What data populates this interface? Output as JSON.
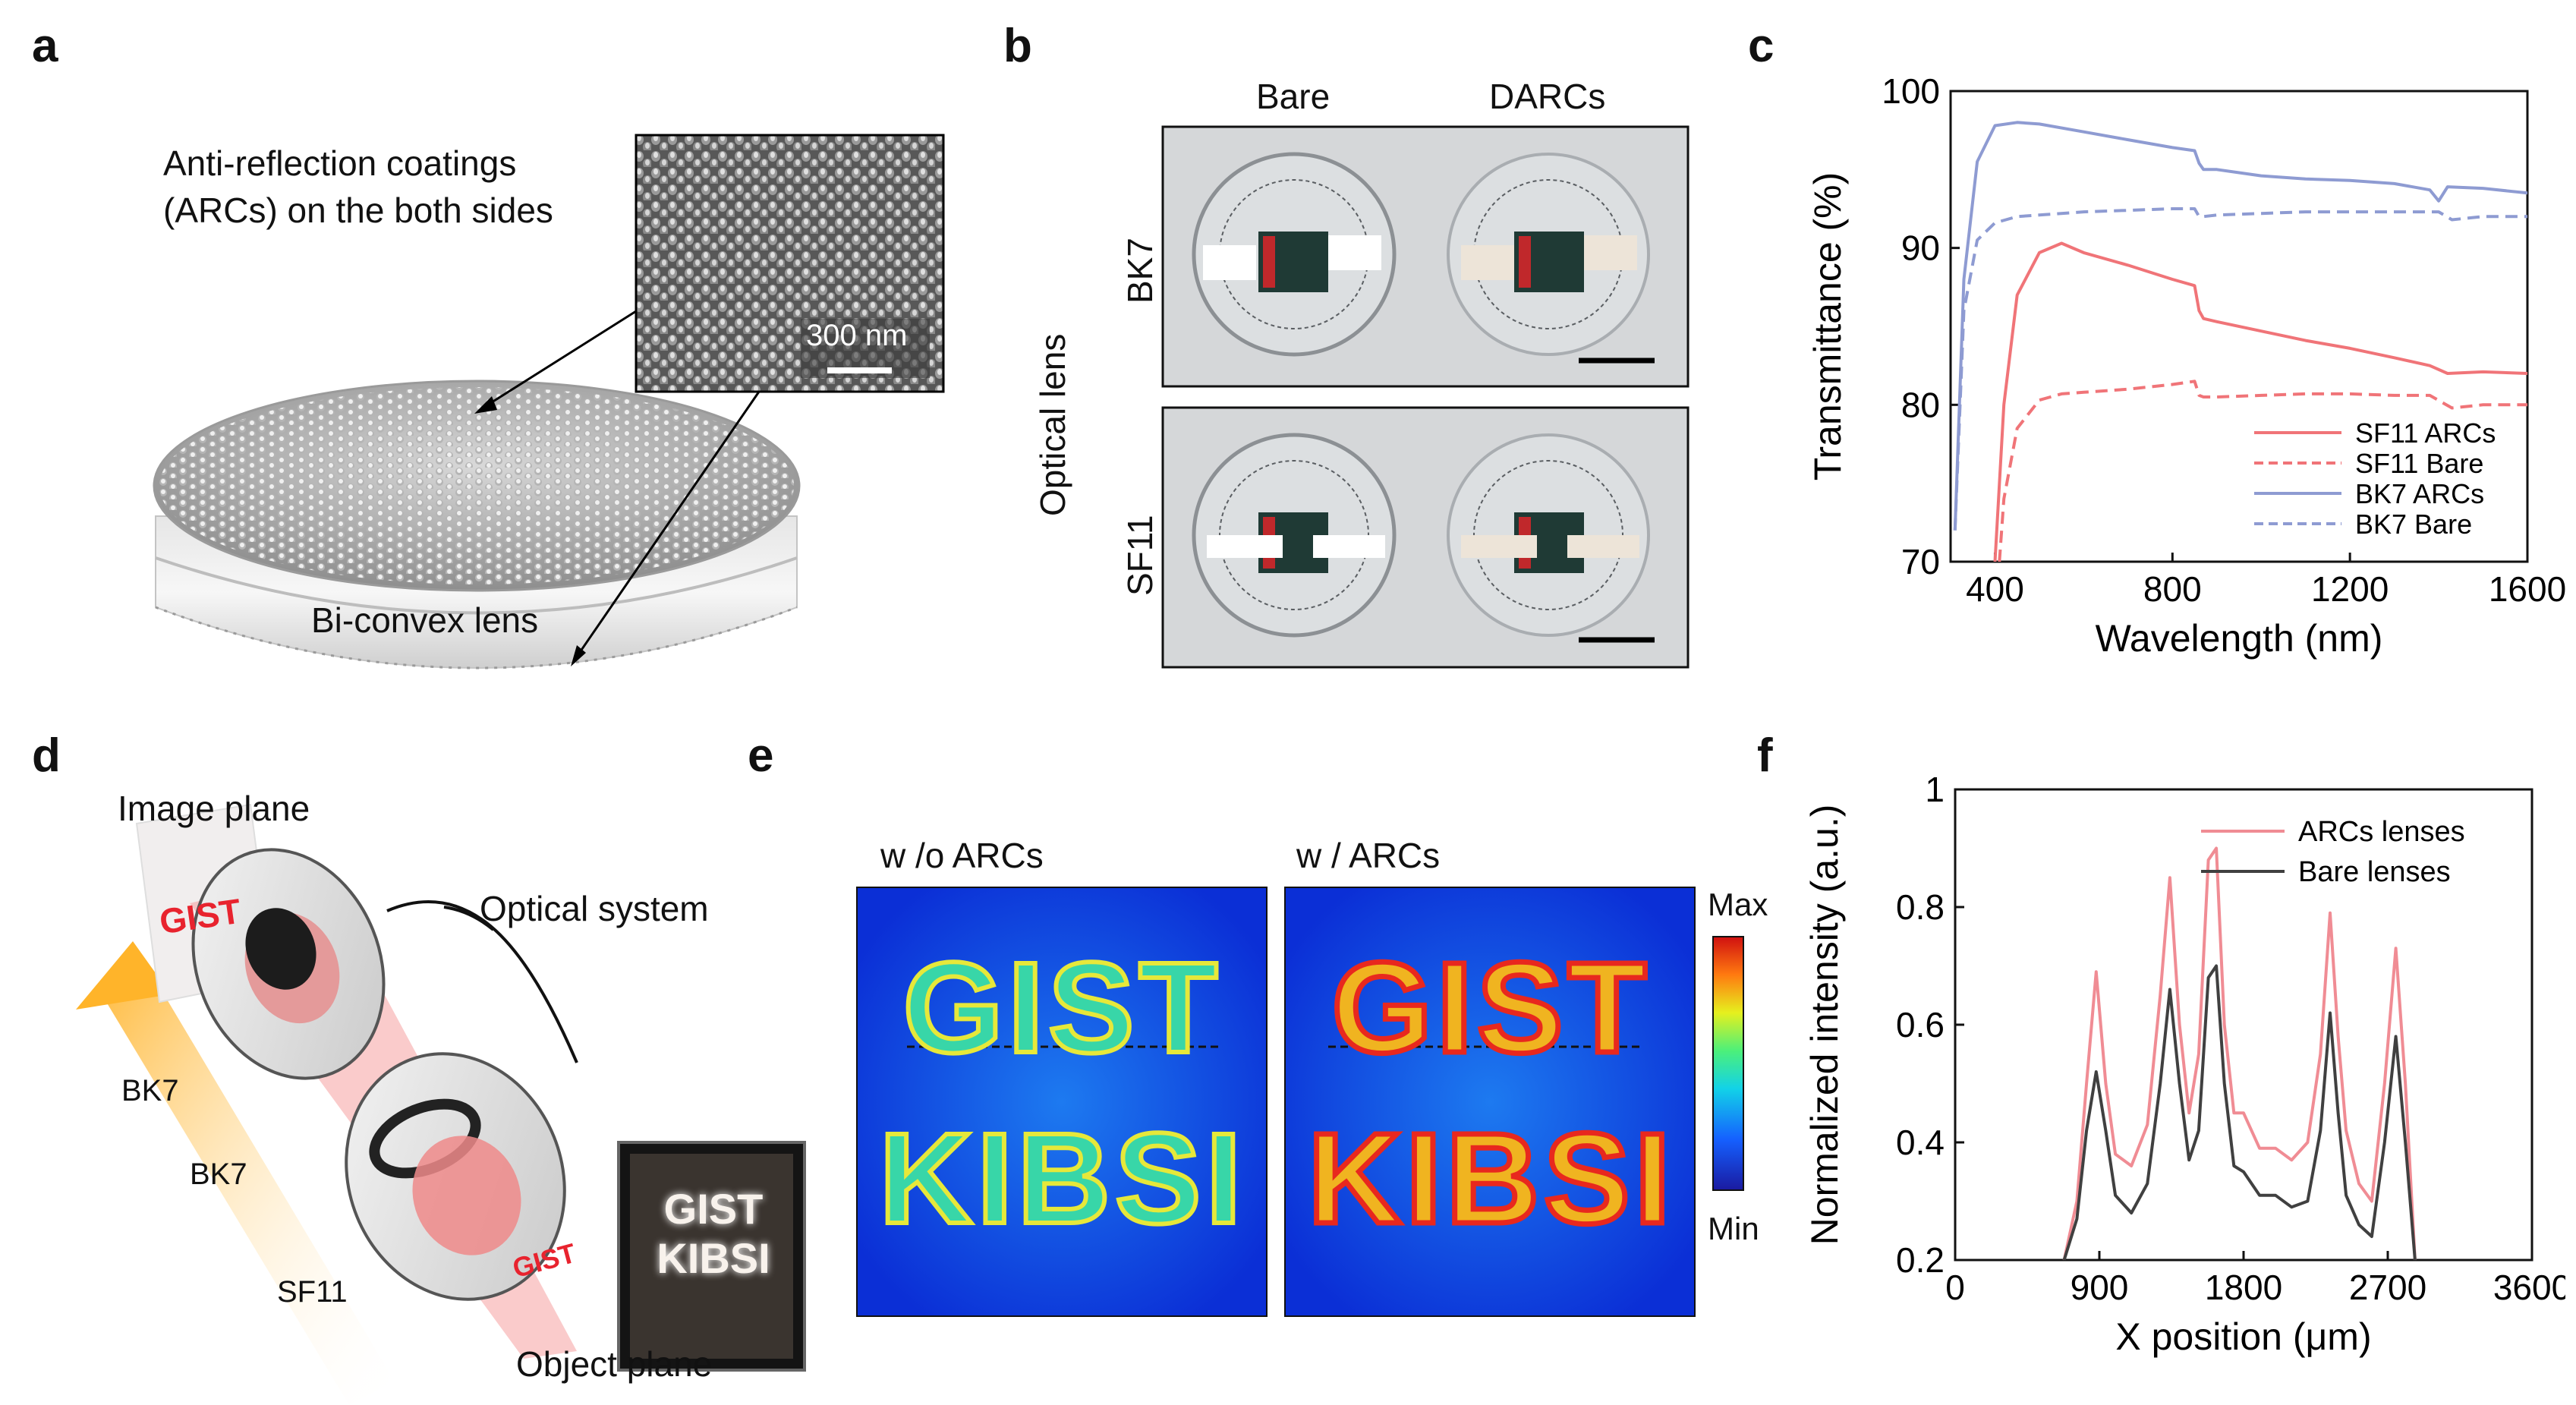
{
  "panels": {
    "a": {
      "letter": "a",
      "coating_label_line1": "Anti-reflection coatings",
      "coating_label_line2": "(ARCs) on the both sides",
      "scale_bar": "300 nm",
      "lens_label": "Bi-convex lens"
    },
    "b": {
      "letter": "b",
      "col_labels": [
        "Bare",
        "DARCs"
      ],
      "row_labels": [
        "BK7",
        "SF11"
      ],
      "side_label": "Optical lens"
    },
    "c": {
      "letter": "c"
    },
    "d": {
      "letter": "d",
      "image_plane": "Image  plane",
      "image_text": "GIST",
      "optical_system": "Optical system",
      "lens_labels": [
        "BK7",
        "BK7",
        "SF11"
      ],
      "object_text": "GIST",
      "object_photo_line1": "GIST",
      "object_photo_line2": "KIBSI",
      "object_plane": "Object plane"
    },
    "e": {
      "letter": "e",
      "left_title": "w /o ARCs",
      "right_title": "w / ARCs",
      "image_line1": "GIST",
      "image_line2": "KIBSI",
      "colorbar_max": "Max",
      "colorbar_min": "Min"
    },
    "f": {
      "letter": "f"
    }
  },
  "colors": {
    "sf11_arcs": "#f07478",
    "sf11_bare": "#f07478",
    "bk7_arcs": "#8e9bd2",
    "bk7_bare": "#8e9bd2",
    "arcs_lenses": "#f08c94",
    "bare_lenses": "#404040",
    "heatmap_bg": "#0b2fd6",
    "red_text": "#e8232e"
  },
  "chart_data": [
    {
      "id": "c",
      "type": "line",
      "xlabel": "Wavelength (nm)",
      "ylabel": "Transmittance (%)",
      "xlim": [
        300,
        1600
      ],
      "ylim": [
        70,
        100
      ],
      "xticks": [
        400,
        800,
        1200,
        1600
      ],
      "yticks": [
        70,
        80,
        90,
        100
      ],
      "legend_position": "bottom-right",
      "series": [
        {
          "name": "SF11 ARCs",
          "style": "solid",
          "x": [
            400,
            420,
            450,
            500,
            550,
            600,
            700,
            800,
            850,
            860,
            870,
            900,
            1000,
            1100,
            1200,
            1300,
            1380,
            1420,
            1500,
            1600
          ],
          "y": [
            70,
            80,
            87,
            89.7,
            90.3,
            89.7,
            88.9,
            88.0,
            87.6,
            86.0,
            85.5,
            85.3,
            84.7,
            84.1,
            83.6,
            83.0,
            82.5,
            82.0,
            82.1,
            82.0
          ]
        },
        {
          "name": "SF11 Bare",
          "style": "dashed",
          "x": [
            410,
            420,
            450,
            500,
            550,
            600,
            700,
            800,
            850,
            860,
            870,
            900,
            1000,
            1100,
            1200,
            1300,
            1380,
            1430,
            1500,
            1600
          ],
          "y": [
            70,
            74,
            78.5,
            80.3,
            80.7,
            80.8,
            81.0,
            81.3,
            81.5,
            80.6,
            80.5,
            80.5,
            80.6,
            80.7,
            80.7,
            80.6,
            80.6,
            79.8,
            80.0,
            80.0
          ]
        },
        {
          "name": "BK7 ARCs",
          "style": "solid",
          "x": [
            310,
            330,
            360,
            400,
            450,
            500,
            600,
            700,
            800,
            850,
            860,
            870,
            900,
            1000,
            1100,
            1200,
            1300,
            1380,
            1400,
            1420,
            1500,
            1600
          ],
          "y": [
            72,
            88,
            95.5,
            97.8,
            98.0,
            97.9,
            97.4,
            96.9,
            96.4,
            96.2,
            95.4,
            95.0,
            95.0,
            94.6,
            94.4,
            94.3,
            94.1,
            93.7,
            93.0,
            93.9,
            93.8,
            93.5
          ]
        },
        {
          "name": "BK7 Bare",
          "style": "dashed",
          "x": [
            310,
            330,
            360,
            400,
            450,
            500,
            600,
            700,
            800,
            850,
            860,
            870,
            900,
            1000,
            1100,
            1200,
            1300,
            1400,
            1430,
            1500,
            1600
          ],
          "y": [
            72,
            86,
            90.5,
            91.6,
            92.0,
            92.1,
            92.3,
            92.4,
            92.5,
            92.5,
            92.0,
            92.0,
            92.1,
            92.2,
            92.3,
            92.3,
            92.3,
            92.3,
            91.8,
            92.0,
            92.0
          ]
        }
      ]
    },
    {
      "id": "f",
      "type": "line",
      "xlabel": "X position (μm)",
      "ylabel": "Normalized intensity (a.u.)",
      "xlim": [
        0,
        3600
      ],
      "ylim": [
        0.2,
        1.0
      ],
      "xticks": [
        0,
        900,
        1800,
        2700,
        3600
      ],
      "yticks": [
        0.2,
        0.4,
        0.6,
        0.8,
        1.0
      ],
      "ytick_labels": [
        "0.2",
        "0.4",
        "0.6",
        "0.8",
        "1"
      ],
      "legend_position": "top-right",
      "series": [
        {
          "name": "ARCs lenses",
          "x": [
            680,
            760,
            820,
            880,
            940,
            1000,
            1100,
            1200,
            1280,
            1340,
            1400,
            1460,
            1520,
            1580,
            1630,
            1680,
            1740,
            1800,
            1900,
            2000,
            2100,
            2200,
            2280,
            2340,
            2390,
            2440,
            2520,
            2600,
            2680,
            2750,
            2810,
            2870
          ],
          "y": [
            0.2,
            0.3,
            0.5,
            0.69,
            0.5,
            0.38,
            0.36,
            0.43,
            0.65,
            0.85,
            0.6,
            0.45,
            0.55,
            0.88,
            0.9,
            0.6,
            0.45,
            0.45,
            0.39,
            0.39,
            0.37,
            0.4,
            0.55,
            0.79,
            0.58,
            0.42,
            0.33,
            0.3,
            0.5,
            0.73,
            0.5,
            0.2
          ]
        },
        {
          "name": "Bare lenses",
          "x": [
            680,
            760,
            820,
            880,
            940,
            1000,
            1100,
            1200,
            1280,
            1340,
            1400,
            1460,
            1520,
            1580,
            1630,
            1680,
            1740,
            1800,
            1900,
            2000,
            2100,
            2200,
            2280,
            2340,
            2390,
            2440,
            2520,
            2600,
            2680,
            2750,
            2810,
            2870
          ],
          "y": [
            0.2,
            0.27,
            0.42,
            0.52,
            0.42,
            0.31,
            0.28,
            0.33,
            0.5,
            0.66,
            0.5,
            0.37,
            0.42,
            0.68,
            0.7,
            0.5,
            0.36,
            0.35,
            0.31,
            0.31,
            0.29,
            0.3,
            0.42,
            0.62,
            0.45,
            0.31,
            0.26,
            0.24,
            0.4,
            0.58,
            0.4,
            0.2
          ]
        }
      ]
    }
  ]
}
